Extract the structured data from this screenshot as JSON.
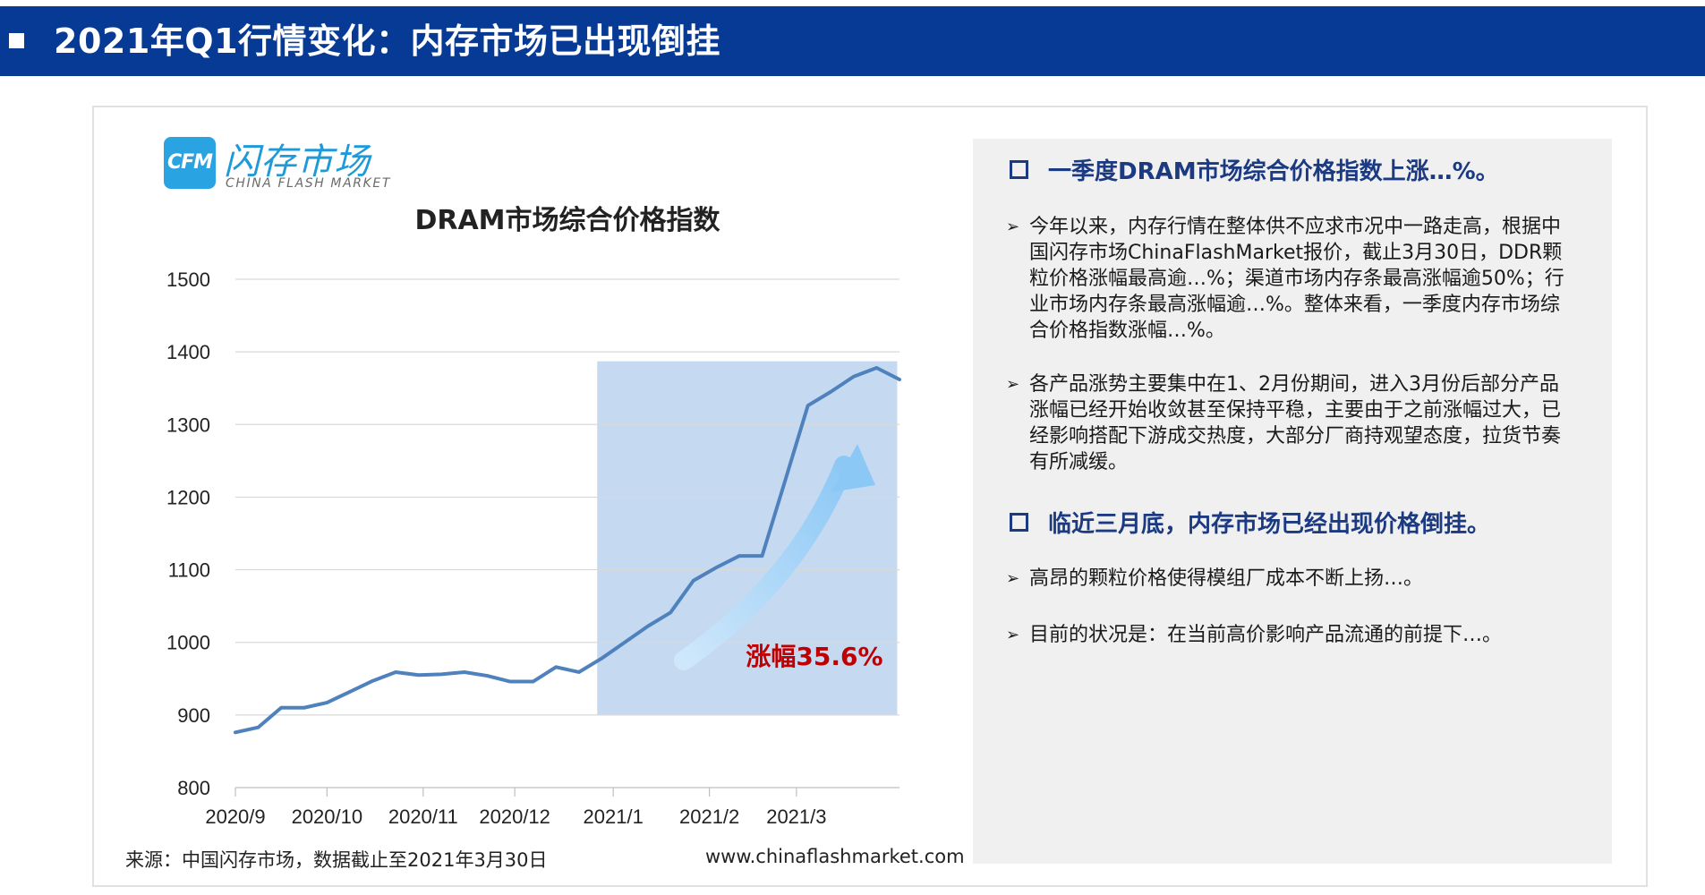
{
  "header": {
    "title": "2021年Q1行情变化：内存市场已出现倒挂"
  },
  "logo": {
    "mark": "CFM",
    "cn": "闪存市场",
    "en": "CHINA FLASH MARKET"
  },
  "chart_data": {
    "type": "line",
    "title": "DRAM市场综合价格指数",
    "xlabel": "",
    "ylabel": "",
    "ylim": [
      800,
      1500
    ],
    "yticks": [
      800,
      900,
      1000,
      1100,
      1200,
      1300,
      1400,
      1500
    ],
    "xlim": [
      0,
      29
    ],
    "xticks": [
      {
        "x": 0,
        "label": "2020/9"
      },
      {
        "x": 4,
        "label": "2020/10"
      },
      {
        "x": 8.2,
        "label": "2020/11"
      },
      {
        "x": 12.2,
        "label": "2020/12"
      },
      {
        "x": 16.5,
        "label": "2021/1"
      },
      {
        "x": 20.7,
        "label": "2021/2"
      },
      {
        "x": 24.5,
        "label": "2021/3"
      }
    ],
    "grid": true,
    "color": "#4f81bd",
    "highlight": {
      "x0": 15.8,
      "x1": 28.9,
      "y0": 900,
      "y1": 1387,
      "color": "#c5d9f1"
    },
    "annotation": {
      "text": "涨幅35.6%",
      "color": "#c00000"
    },
    "series": [
      {
        "x": [
          0,
          1,
          2,
          3,
          4,
          5,
          6,
          7,
          8,
          9,
          10,
          11,
          12,
          13,
          14,
          15,
          16,
          17,
          18,
          19,
          20,
          21,
          22,
          23,
          24,
          25,
          26,
          27,
          28,
          29
        ],
        "values": [
          876,
          883,
          910,
          910,
          917,
          932,
          947,
          959,
          955,
          956,
          959,
          954,
          946,
          946,
          966,
          959,
          978,
          1000,
          1022,
          1041,
          1085,
          1103,
          1119,
          1119,
          1222,
          1326,
          1345,
          1366,
          1378,
          1362
        ]
      }
    ]
  },
  "source": "来源：中国闪存市场，数据截止至2021年3月30日",
  "website": "www.chinaflashmarket.com",
  "panel": {
    "section1": "一季度DRAM市场综合价格指数上涨…%。",
    "bullets1": [
      "今年以来，内存行情在整体供不应求市况中一路走高，根据中国闪存市场ChinaFlashMarket报价，截止3月30日，DDR颗粒价格涨幅最高逾…%；渠道市场内存条最高涨幅逾50%；行业市场内存条最高涨幅逾…%。整体来看，一季度内存市场综合价格指数涨幅…%。",
      "各产品涨势主要集中在1、2月份期间，进入3月份后部分产品涨幅已经开始收敛甚至保持平稳，主要由于之前涨幅过大，已经影响搭配下游成交热度，大部分厂商持观望态度，拉货节奏有所减缓。"
    ],
    "section2": "临近三月底，内存市场已经出现价格倒挂。",
    "bullets2": [
      "高昂的颗粒价格使得模组厂成本不断上扬…。",
      "目前的状况是：在当前高价影响产品流通的前提下…。"
    ],
    "arrow_glyph": "➢"
  }
}
